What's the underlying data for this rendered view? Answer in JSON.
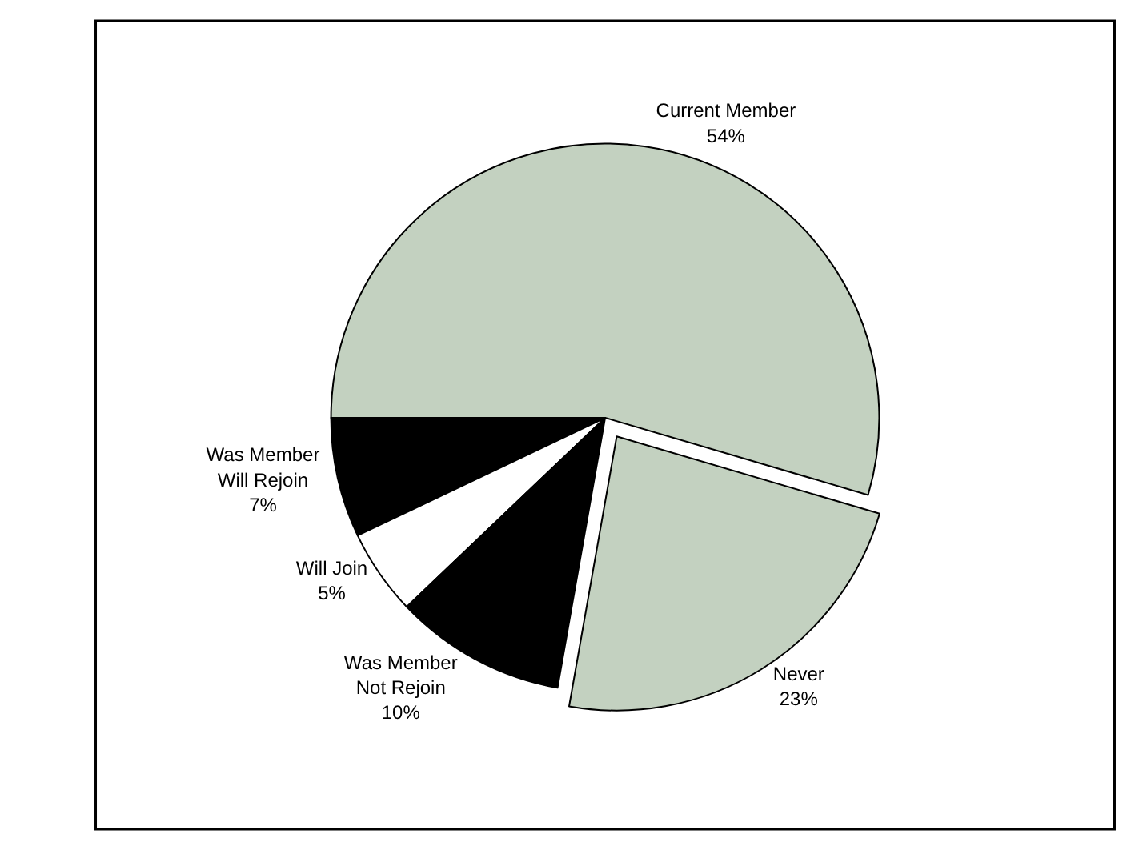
{
  "chart_data": {
    "type": "pie",
    "categories": [
      "Current Member",
      "Was Member\nWill Rejoin",
      "Will Join",
      "Was Member\nNot Rejoin",
      "Never"
    ],
    "values": [
      54,
      7,
      5,
      10,
      23
    ],
    "colors": [
      "#c3d1c0",
      "#000000",
      "#ffffff",
      "#000000",
      "#c3d1c0"
    ],
    "value_labels": [
      "54%",
      "7%",
      "5%",
      "10%",
      "23%"
    ],
    "legend": false
  }
}
